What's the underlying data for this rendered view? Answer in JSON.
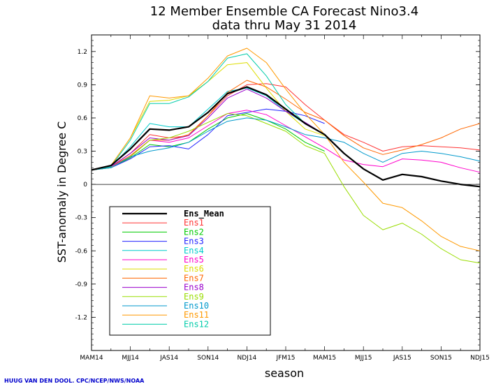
{
  "chart_data": {
    "type": "line",
    "title": "12 Member Ensemble CA Forecast Nino3.4",
    "subtitle": "data thru May 31 2014",
    "xlabel": "season",
    "ylabel": "SST-anomaly in Degree C",
    "credit": "HUUG VAN DEN DOOL. CPC/NCEP/NWS/NOAA",
    "ylim": [
      -1.5,
      1.35
    ],
    "yticks": [
      1.2,
      0.9,
      0.6,
      0.3,
      0,
      -0.3,
      -0.6,
      -0.9,
      -1.2
    ],
    "ytick_labels": [
      "1.2",
      "0.9",
      "0.6",
      "0.3",
      "0",
      "-0.3",
      "-0.6",
      "-0.9",
      "-1.2"
    ],
    "xtick_labels": [
      "MAM14",
      "MJJ14",
      "JAS14",
      "SON14",
      "NDJ14",
      "JFM15",
      "MAM15",
      "MJJ15",
      "JAS15",
      "SON15",
      "NDJ15"
    ],
    "x_points": 21,
    "legend_placement": "lower-left",
    "series": [
      {
        "name": "Ens_Mean",
        "color": "#000000",
        "width": 2.2,
        "values": [
          0.13,
          0.17,
          0.32,
          0.5,
          0.49,
          0.52,
          0.65,
          0.82,
          0.88,
          0.81,
          0.68,
          0.55,
          0.45,
          0.28,
          0.14,
          0.04,
          0.09,
          0.07,
          0.03,
          0.0,
          -0.02
        ]
      },
      {
        "name": "Ens1",
        "color": "#ff3333",
        "width": 1,
        "values": [
          0.13,
          0.16,
          0.28,
          0.45,
          0.42,
          0.44,
          0.62,
          0.8,
          0.9,
          0.91,
          0.88,
          0.72,
          0.58,
          0.45,
          0.38,
          0.3,
          0.34,
          0.35,
          0.34,
          0.33,
          0.31
        ]
      },
      {
        "name": "Ens2",
        "color": "#00cc00",
        "width": 1,
        "values": [
          0.13,
          0.15,
          0.24,
          0.36,
          0.34,
          0.38,
          0.5,
          0.6,
          0.64,
          0.58,
          0.5,
          0.38,
          0.3,
          null,
          null,
          null,
          null,
          null,
          null,
          null,
          null
        ]
      },
      {
        "name": "Ens3",
        "color": "#2222ff",
        "width": 1,
        "values": [
          0.13,
          0.15,
          0.23,
          0.34,
          0.35,
          0.32,
          0.45,
          0.62,
          0.65,
          0.68,
          0.66,
          0.62,
          0.55,
          null,
          null,
          null,
          null,
          null,
          null,
          null,
          null
        ]
      },
      {
        "name": "Ens4",
        "color": "#00cccc",
        "width": 1,
        "values": [
          0.13,
          0.16,
          0.34,
          0.55,
          0.52,
          0.52,
          0.68,
          0.84,
          0.87,
          0.8,
          0.66,
          0.55,
          0.45,
          null,
          null,
          null,
          null,
          null,
          null,
          null,
          null
        ]
      },
      {
        "name": "Ens5",
        "color": "#ff00cc",
        "width": 1,
        "values": [
          0.13,
          0.16,
          0.25,
          0.4,
          0.38,
          0.42,
          0.53,
          0.64,
          0.67,
          0.63,
          0.53,
          0.43,
          0.33,
          0.22,
          0.18,
          0.16,
          0.23,
          0.22,
          0.2,
          0.15,
          0.11
        ]
      },
      {
        "name": "Ens6",
        "color": "#dddd00",
        "width": 1,
        "values": [
          0.13,
          0.17,
          0.42,
          0.75,
          0.76,
          0.8,
          0.93,
          1.08,
          1.1,
          0.87,
          0.66,
          0.5,
          0.44,
          null,
          null,
          null,
          null,
          null,
          null,
          null,
          null
        ]
      },
      {
        "name": "Ens7",
        "color": "#ff6600",
        "width": 1,
        "values": [
          0.13,
          0.16,
          0.26,
          0.4,
          0.4,
          0.45,
          0.62,
          0.83,
          0.94,
          0.88,
          0.77,
          0.65,
          0.58,
          0.44,
          0.33,
          0.27,
          0.31,
          0.36,
          0.42,
          0.5,
          0.55
        ]
      },
      {
        "name": "Ens8",
        "color": "#9900cc",
        "width": 1,
        "values": [
          0.13,
          0.16,
          0.28,
          0.42,
          0.4,
          0.44,
          0.6,
          0.78,
          0.86,
          0.78,
          0.66,
          0.56,
          0.45,
          null,
          null,
          null,
          null,
          null,
          null,
          null,
          null
        ]
      },
      {
        "name": "Ens9",
        "color": "#99dd00",
        "width": 1,
        "values": [
          0.13,
          0.15,
          0.25,
          0.4,
          0.42,
          0.48,
          0.56,
          0.64,
          0.62,
          0.55,
          0.48,
          0.35,
          0.28,
          -0.02,
          -0.28,
          -0.41,
          -0.35,
          -0.45,
          -0.58,
          -0.68,
          -0.71
        ]
      },
      {
        "name": "Ens10",
        "color": "#0099cc",
        "width": 1,
        "values": [
          0.13,
          0.15,
          0.25,
          0.3,
          0.33,
          0.38,
          0.48,
          0.57,
          0.6,
          0.58,
          0.52,
          0.45,
          0.42,
          0.38,
          0.28,
          0.2,
          0.28,
          0.3,
          0.28,
          0.25,
          0.21
        ]
      },
      {
        "name": "Ens11",
        "color": "#ff9900",
        "width": 1,
        "values": [
          0.13,
          0.17,
          0.42,
          0.8,
          0.78,
          0.8,
          0.96,
          1.16,
          1.23,
          1.1,
          0.86,
          0.64,
          0.45,
          0.2,
          0.02,
          -0.17,
          -0.21,
          -0.33,
          -0.47,
          -0.56,
          -0.6
        ]
      },
      {
        "name": "Ens12",
        "color": "#00ccaa",
        "width": 1,
        "values": [
          0.13,
          0.16,
          0.4,
          0.73,
          0.73,
          0.79,
          0.93,
          1.14,
          1.18,
          0.98,
          0.72,
          0.55,
          0.45,
          null,
          null,
          null,
          null,
          null,
          null,
          null,
          null
        ]
      }
    ]
  }
}
